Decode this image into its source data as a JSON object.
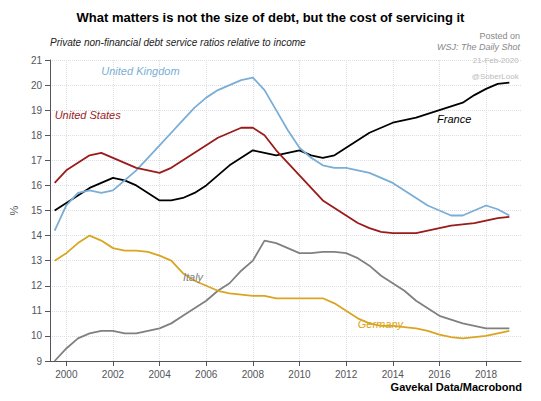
{
  "chart_data": {
    "type": "line",
    "title": "What matters is not the size of debt, but the cost of servicing it",
    "subtitle": "Private non-financial debt service ratios relative to income",
    "notes": [
      "Posted on",
      "WSJ: The Daily Shot"
    ],
    "footer": "Gavekal Data/Macrobond",
    "ylabel": "%",
    "xlim": [
      1999.3,
      2019.5
    ],
    "xticks": [
      2000,
      2002,
      2004,
      2006,
      2008,
      2010,
      2012,
      2014,
      2016,
      2018
    ],
    "ylim": [
      9,
      21
    ],
    "yticks": [
      9,
      10,
      11,
      12,
      13,
      14,
      15,
      16,
      17,
      18,
      19,
      20,
      21
    ],
    "grid": true,
    "x": [
      1999.5,
      2000,
      2000.5,
      2001,
      2001.5,
      2002,
      2002.5,
      2003,
      2003.5,
      2004,
      2004.5,
      2005,
      2005.5,
      2006,
      2006.5,
      2007,
      2007.5,
      2008,
      2008.5,
      2009,
      2009.5,
      2010,
      2010.5,
      2011,
      2011.5,
      2012,
      2012.5,
      2013,
      2013.5,
      2014,
      2014.5,
      2015,
      2015.5,
      2016,
      2016.5,
      2017,
      2017.5,
      2018,
      2018.5,
      2019
    ],
    "series": [
      {
        "name": "France",
        "color": "#000000",
        "values": [
          15.0,
          15.3,
          15.6,
          15.9,
          16.1,
          16.3,
          16.2,
          16.0,
          15.7,
          15.4,
          15.4,
          15.5,
          15.7,
          16.0,
          16.4,
          16.8,
          17.1,
          17.4,
          17.3,
          17.2,
          17.3,
          17.4,
          17.2,
          17.1,
          17.2,
          17.5,
          17.8,
          18.1,
          18.3,
          18.5,
          18.6,
          18.7,
          18.85,
          19.0,
          19.15,
          19.3,
          19.6,
          19.85,
          20.05,
          20.1
        ]
      },
      {
        "name": "United Kingdom",
        "color": "#7aaed6",
        "values": [
          14.2,
          15.2,
          15.7,
          15.8,
          15.7,
          15.8,
          16.2,
          16.6,
          17.1,
          17.6,
          18.1,
          18.6,
          19.1,
          19.5,
          19.8,
          20.0,
          20.2,
          20.3,
          19.8,
          19.0,
          18.2,
          17.5,
          17.1,
          16.8,
          16.7,
          16.7,
          16.6,
          16.5,
          16.3,
          16.1,
          15.8,
          15.5,
          15.2,
          15.0,
          14.8,
          14.8,
          15.0,
          15.2,
          15.05,
          14.8
        ]
      },
      {
        "name": "United States",
        "color": "#9B1B1B",
        "values": [
          16.1,
          16.6,
          16.9,
          17.2,
          17.3,
          17.1,
          16.9,
          16.7,
          16.6,
          16.5,
          16.7,
          17.0,
          17.3,
          17.6,
          17.9,
          18.1,
          18.3,
          18.3,
          18.0,
          17.4,
          16.9,
          16.4,
          15.9,
          15.4,
          15.1,
          14.8,
          14.5,
          14.3,
          14.15,
          14.1,
          14.1,
          14.1,
          14.2,
          14.3,
          14.4,
          14.45,
          14.5,
          14.6,
          14.7,
          14.75
        ]
      },
      {
        "name": "Italy",
        "color": "#808080",
        "values": [
          9.0,
          9.5,
          9.9,
          10.1,
          10.2,
          10.2,
          10.1,
          10.1,
          10.2,
          10.3,
          10.5,
          10.8,
          11.1,
          11.4,
          11.8,
          12.1,
          12.6,
          13.0,
          13.8,
          13.7,
          13.5,
          13.3,
          13.3,
          13.35,
          13.35,
          13.3,
          13.1,
          12.8,
          12.4,
          12.1,
          11.8,
          11.4,
          11.1,
          10.8,
          10.65,
          10.5,
          10.4,
          10.3,
          10.3,
          10.3
        ]
      },
      {
        "name": "Germany",
        "color": "#DAA520",
        "values": [
          13.0,
          13.3,
          13.7,
          14.0,
          13.8,
          13.5,
          13.4,
          13.4,
          13.35,
          13.2,
          13.0,
          12.5,
          12.2,
          12.0,
          11.8,
          11.7,
          11.65,
          11.6,
          11.6,
          11.5,
          11.5,
          11.5,
          11.5,
          11.5,
          11.3,
          11.0,
          10.7,
          10.5,
          10.4,
          10.4,
          10.35,
          10.3,
          10.2,
          10.05,
          9.95,
          9.9,
          9.95,
          10.0,
          10.1,
          10.2
        ]
      }
    ],
    "annotations": [
      {
        "text": "France",
        "x": 2015.9,
        "y": 18.65,
        "color": "#000000"
      },
      {
        "text": "United Kingdom",
        "x": 2001.5,
        "y": 20.55,
        "color": "#7aaed6"
      },
      {
        "text": "United States",
        "x": 1999.5,
        "y": 18.8,
        "color": "#9B1B1B"
      },
      {
        "text": "Italy",
        "x": 2005.0,
        "y": 12.35,
        "color": "#808080"
      },
      {
        "text": "Germany",
        "x": 2012.5,
        "y": 10.48,
        "color": "#DAA520"
      }
    ],
    "watermarks": [
      {
        "text": "21-Feb-2020",
        "x": 2019.4,
        "y": 21.15,
        "color": "#BBBBBB"
      },
      {
        "text": "@SoberLook",
        "x": 2019.4,
        "y": 20.5,
        "color": "#BBBBBB"
      }
    ]
  }
}
